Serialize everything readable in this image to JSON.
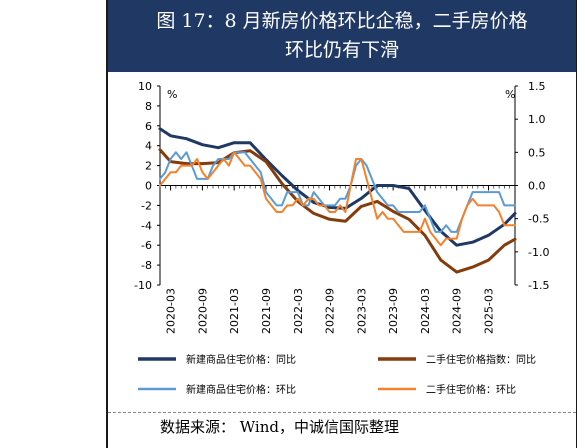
{
  "title_line1": "图 17：8 月新房价格环比企稳，二手房价格",
  "title_line2": "环比仍有下滑",
  "source": "数据来源： Wind，中诚信国际整理",
  "chart_data": {
    "type": "line",
    "left_axis": {
      "unit": "%",
      "ticks": [
        10,
        8,
        6,
        4,
        2,
        0,
        -2,
        -4,
        -6,
        -8,
        -10
      ],
      "ylim": [
        -10,
        10
      ]
    },
    "right_axis": {
      "unit": "%",
      "ticks": [
        "1.5",
        "1.0",
        "0.5",
        "0.0",
        "-0.5",
        "-1.0",
        "-1.5"
      ],
      "ylim": [
        -1.5,
        1.5
      ]
    },
    "x_ticks": [
      "2020-03",
      "2020-09",
      "2021-03",
      "2021-09",
      "2022-03",
      "2022-09",
      "2023-03",
      "2023-09",
      "2024-03",
      "2024-09",
      "2025-03"
    ],
    "x_range": [
      "2020-01",
      "2025-08"
    ],
    "series": [
      {
        "name": "新建商品住宅价格：同比",
        "axis": "left",
        "color": "#1f3864",
        "width": 3,
        "x": [
          "2020-01",
          "2020-03",
          "2020-06",
          "2020-09",
          "2020-12",
          "2021-03",
          "2021-06",
          "2021-09",
          "2021-12",
          "2022-03",
          "2022-06",
          "2022-09",
          "2022-12",
          "2023-03",
          "2023-06",
          "2023-09",
          "2023-12",
          "2024-03",
          "2024-06",
          "2024-09",
          "2024-12",
          "2025-03",
          "2025-06",
          "2025-08"
        ],
        "y": [
          5.7,
          5.0,
          4.7,
          4.1,
          3.8,
          4.3,
          4.3,
          2.6,
          1.0,
          -0.5,
          -1.7,
          -2.2,
          -2.3,
          -1.3,
          0.0,
          0.0,
          -0.3,
          -2.5,
          -4.6,
          -6.0,
          -5.7,
          -5.0,
          -3.9,
          -2.8
        ]
      },
      {
        "name": "二手住宅价格指数：同比",
        "axis": "left",
        "color": "#843c0c",
        "width": 3,
        "x": [
          "2020-01",
          "2020-03",
          "2020-06",
          "2020-09",
          "2020-12",
          "2021-03",
          "2021-06",
          "2021-09",
          "2021-12",
          "2022-03",
          "2022-06",
          "2022-09",
          "2022-12",
          "2023-03",
          "2023-06",
          "2023-09",
          "2023-12",
          "2024-03",
          "2024-06",
          "2024-09",
          "2024-12",
          "2025-03",
          "2025-06",
          "2025-08"
        ],
        "y": [
          3.6,
          2.4,
          2.2,
          2.2,
          2.3,
          3.3,
          3.5,
          2.4,
          0.2,
          -1.6,
          -2.8,
          -3.4,
          -3.6,
          -2.1,
          -1.6,
          -2.6,
          -3.4,
          -5.0,
          -7.5,
          -8.7,
          -8.2,
          -7.5,
          -6.0,
          -5.4
        ]
      },
      {
        "name": "新建商品住宅价格：环比",
        "axis": "right",
        "color": "#5b9bd5",
        "width": 2,
        "x": [
          "2020-01",
          "2020-02",
          "2020-03",
          "2020-04",
          "2020-05",
          "2020-06",
          "2020-07",
          "2020-08",
          "2020-09",
          "2020-10",
          "2020-11",
          "2020-12",
          "2021-01",
          "2021-02",
          "2021-03",
          "2021-04",
          "2021-05",
          "2021-06",
          "2021-07",
          "2021-08",
          "2021-09",
          "2021-10",
          "2021-11",
          "2021-12",
          "2022-01",
          "2022-02",
          "2022-03",
          "2022-04",
          "2022-05",
          "2022-06",
          "2022-07",
          "2022-08",
          "2022-09",
          "2022-10",
          "2022-11",
          "2022-12",
          "2023-01",
          "2023-02",
          "2023-03",
          "2023-04",
          "2023-05",
          "2023-06",
          "2023-07",
          "2023-08",
          "2023-09",
          "2023-10",
          "2023-11",
          "2023-12",
          "2024-01",
          "2024-02",
          "2024-03",
          "2024-04",
          "2024-05",
          "2024-06",
          "2024-07",
          "2024-08",
          "2024-09",
          "2024-10",
          "2024-11",
          "2024-12",
          "2025-01",
          "2025-02",
          "2025-03",
          "2025-04",
          "2025-05",
          "2025-06",
          "2025-07",
          "2025-08"
        ],
        "y": [
          0.1,
          0.2,
          0.4,
          0.5,
          0.4,
          0.5,
          0.3,
          0.1,
          0.1,
          0.1,
          0.3,
          0.4,
          0.4,
          0.4,
          0.5,
          0.5,
          0.5,
          0.4,
          0.3,
          0.2,
          -0.1,
          -0.2,
          -0.3,
          -0.3,
          -0.1,
          -0.1,
          -0.1,
          -0.3,
          -0.3,
          -0.1,
          -0.2,
          -0.3,
          -0.3,
          -0.3,
          -0.2,
          -0.2,
          0.0,
          0.3,
          0.4,
          0.3,
          0.1,
          -0.1,
          -0.2,
          -0.3,
          -0.3,
          -0.4,
          -0.4,
          -0.4,
          -0.4,
          -0.4,
          -0.3,
          -0.5,
          -0.7,
          -0.7,
          -0.6,
          -0.7,
          -0.7,
          -0.5,
          -0.3,
          -0.1,
          -0.1,
          -0.1,
          -0.1,
          -0.1,
          -0.1,
          -0.3,
          -0.3,
          -0.3
        ]
      },
      {
        "name": "二手住宅价格：环比",
        "axis": "right",
        "color": "#f4812c",
        "width": 2,
        "x": [
          "2020-01",
          "2020-02",
          "2020-03",
          "2020-04",
          "2020-05",
          "2020-06",
          "2020-07",
          "2020-08",
          "2020-09",
          "2020-10",
          "2020-11",
          "2020-12",
          "2021-01",
          "2021-02",
          "2021-03",
          "2021-04",
          "2021-05",
          "2021-06",
          "2021-07",
          "2021-08",
          "2021-09",
          "2021-10",
          "2021-11",
          "2021-12",
          "2022-01",
          "2022-02",
          "2022-03",
          "2022-04",
          "2022-05",
          "2022-06",
          "2022-07",
          "2022-08",
          "2022-09",
          "2022-10",
          "2022-11",
          "2022-12",
          "2023-01",
          "2023-02",
          "2023-03",
          "2023-04",
          "2023-05",
          "2023-06",
          "2023-07",
          "2023-08",
          "2023-09",
          "2023-10",
          "2023-11",
          "2023-12",
          "2024-01",
          "2024-02",
          "2024-03",
          "2024-04",
          "2024-05",
          "2024-06",
          "2024-07",
          "2024-08",
          "2024-09",
          "2024-10",
          "2024-11",
          "2024-12",
          "2025-01",
          "2025-02",
          "2025-03",
          "2025-04",
          "2025-05",
          "2025-06",
          "2025-07",
          "2025-08"
        ],
        "y": [
          0.0,
          0.1,
          0.2,
          0.2,
          0.3,
          0.3,
          0.3,
          0.4,
          0.2,
          0.1,
          0.2,
          0.3,
          0.4,
          0.3,
          0.5,
          0.4,
          0.3,
          0.3,
          0.2,
          0.1,
          -0.2,
          -0.3,
          -0.4,
          -0.4,
          -0.3,
          -0.3,
          -0.2,
          -0.3,
          -0.2,
          -0.2,
          -0.3,
          -0.3,
          -0.4,
          -0.4,
          -0.3,
          -0.4,
          0.0,
          0.4,
          0.4,
          0.1,
          -0.2,
          -0.5,
          -0.4,
          -0.5,
          -0.5,
          -0.6,
          -0.7,
          -0.7,
          -0.7,
          -0.7,
          -0.5,
          -0.7,
          -0.8,
          -0.9,
          -0.8,
          -0.8,
          -0.8,
          -0.5,
          -0.3,
          -0.2,
          -0.3,
          -0.3,
          -0.3,
          -0.3,
          -0.4,
          -0.6,
          -0.6,
          -0.6
        ]
      }
    ],
    "legend": {
      "placement": "bottom",
      "columns": 2
    },
    "grid": false
  }
}
